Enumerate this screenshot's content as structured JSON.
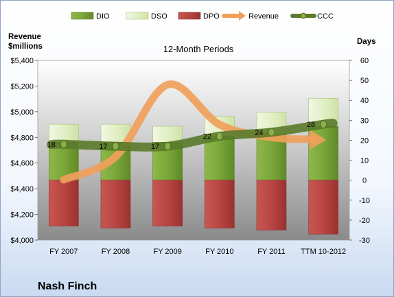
{
  "company": "Nash Finch",
  "chart_data": {
    "type": "bar",
    "title": "12-Month Periods",
    "categories": [
      "FY 2007",
      "FY 2008",
      "FY 2009",
      "FY 2010",
      "FY 2011",
      "TTM 10-2012"
    ],
    "left_axis": {
      "label_line1": "Revenue",
      "label_line2": "$millions",
      "ylim": [
        4000,
        5400
      ],
      "ticks": [
        "$4,000",
        "$4,200",
        "$4,400",
        "$4,600",
        "$4,800",
        "$5,000",
        "$5,200",
        "$5,400"
      ],
      "tick_values": [
        4000,
        4200,
        4400,
        4600,
        4800,
        5000,
        5200,
        5400
      ]
    },
    "right_axis": {
      "label": "Days",
      "ylim": [
        -30,
        60
      ],
      "ticks": [
        "-30",
        "-20",
        "-10",
        "0",
        "10",
        "20",
        "30",
        "40",
        "50",
        "60"
      ],
      "tick_values": [
        -30,
        -20,
        -10,
        0,
        10,
        20,
        30,
        40,
        50,
        60
      ]
    },
    "legend": {
      "placement": "top",
      "items": [
        "DIO",
        "DSO",
        "DPO",
        "Revenue",
        "CCC"
      ]
    },
    "series": [
      {
        "name": "DIO",
        "type": "stacked-bar",
        "axis": "right",
        "color": "#6f9a2f",
        "values": [
          19,
          19,
          19,
          22,
          23,
          27
        ]
      },
      {
        "name": "DSO",
        "type": "stacked-bar",
        "axis": "right",
        "color": "#e2efc6",
        "values": [
          9,
          9,
          8,
          10,
          11,
          14
        ]
      },
      {
        "name": "DPO",
        "type": "stacked-bar",
        "axis": "right",
        "color": "#b84542",
        "values": [
          -23,
          -24,
          -23,
          -24,
          -25,
          -27
        ]
      },
      {
        "name": "Revenue",
        "type": "smooth-line-arrow",
        "axis": "left",
        "color": "#f0a05a",
        "values": [
          4470,
          4650,
          5210,
          4900,
          4800,
          4780
        ]
      },
      {
        "name": "CCC",
        "type": "smooth-line",
        "axis": "right",
        "color": "#5a7a2a",
        "values": [
          18,
          17,
          17,
          22,
          24,
          28
        ]
      }
    ],
    "data_labels": [
      "18",
      "17",
      "17",
      "22",
      "24",
      "28"
    ],
    "grid": false
  }
}
